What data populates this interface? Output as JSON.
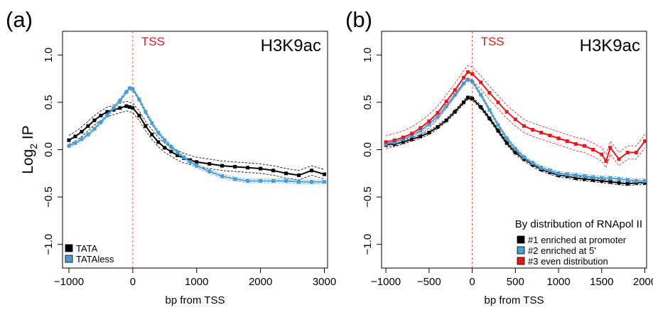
{
  "chart_data": [
    {
      "type": "line",
      "panel_label": "(a)",
      "corner_label": "H3K9ac",
      "vline_label": "TSS",
      "vline_x": 0,
      "xlabel": "bp from TSS",
      "ylabel_main": "Log",
      "ylabel_sub": "2",
      "ylabel_tail": " IP",
      "xlim": [
        -1100,
        3050
      ],
      "ylim": [
        -1.25,
        1.25
      ],
      "xticks": [
        -1000,
        0,
        1000,
        2000,
        3000
      ],
      "xtick_labels": [
        "−1000",
        "0",
        "1000",
        "2000",
        "3000"
      ],
      "yticks": [
        -1.0,
        -0.5,
        0.0,
        0.5,
        1.0
      ],
      "ytick_labels": [
        "−1.0",
        "−0.5",
        "0.0",
        "0.5",
        "1.0"
      ],
      "legend_title": "",
      "legend_position": "bottom-left",
      "series": [
        {
          "name": "TATA",
          "color": "#000000",
          "band": 0.05,
          "x": [
            -1000,
            -900,
            -800,
            -700,
            -600,
            -500,
            -400,
            -300,
            -200,
            -100,
            -50,
            0,
            100,
            200,
            300,
            400,
            500,
            600,
            700,
            800,
            900,
            1000,
            1200,
            1400,
            1600,
            1800,
            2000,
            2200,
            2400,
            2600,
            2800,
            3000
          ],
          "y": [
            0.1,
            0.14,
            0.19,
            0.25,
            0.31,
            0.36,
            0.4,
            0.42,
            0.44,
            0.46,
            0.45,
            0.44,
            0.36,
            0.25,
            0.16,
            0.08,
            0.02,
            -0.02,
            -0.06,
            -0.09,
            -0.11,
            -0.13,
            -0.15,
            -0.17,
            -0.18,
            -0.19,
            -0.2,
            -0.22,
            -0.25,
            -0.27,
            -0.22,
            -0.26
          ]
        },
        {
          "name": "TATAless",
          "color": "#4b9cd3",
          "band": 0.02,
          "x": [
            -1000,
            -900,
            -800,
            -700,
            -600,
            -500,
            -400,
            -300,
            -200,
            -100,
            -50,
            0,
            100,
            200,
            300,
            400,
            500,
            600,
            700,
            800,
            900,
            1000,
            1200,
            1400,
            1600,
            1800,
            2000,
            2200,
            2400,
            2600,
            2800,
            3000
          ],
          "y": [
            0.04,
            0.07,
            0.11,
            0.16,
            0.22,
            0.29,
            0.36,
            0.44,
            0.52,
            0.61,
            0.65,
            0.64,
            0.53,
            0.4,
            0.28,
            0.18,
            0.1,
            0.03,
            -0.03,
            -0.08,
            -0.13,
            -0.17,
            -0.23,
            -0.28,
            -0.31,
            -0.33,
            -0.33,
            -0.33,
            -0.33,
            -0.34,
            -0.34,
            -0.34
          ]
        }
      ]
    },
    {
      "type": "line",
      "panel_label": "(b)",
      "corner_label": "H3K9ac",
      "vline_label": "TSS",
      "vline_x": 0,
      "xlabel": "bp from TSS",
      "ylabel_main": "",
      "ylabel_sub": "",
      "ylabel_tail": "",
      "xlim": [
        -1050,
        2020
      ],
      "ylim": [
        -1.25,
        1.25
      ],
      "xticks": [
        -1000,
        -500,
        0,
        500,
        1000,
        1500,
        2000
      ],
      "xtick_labels": [
        "−1000",
        "−500",
        "0",
        "500",
        "1000",
        "1500",
        "2000"
      ],
      "yticks": [
        -1.0,
        -0.5,
        0.0,
        0.5,
        1.0
      ],
      "ytick_labels": [
        "−1.0",
        "−0.5",
        "0.0",
        "0.5",
        "1.0"
      ],
      "legend_title": "By distribution of RNApol II",
      "legend_position": "bottom-right",
      "series": [
        {
          "name": "#1 enriched at promoter",
          "color": "#000000",
          "band": 0.02,
          "x": [
            -1000,
            -900,
            -800,
            -700,
            -600,
            -500,
            -400,
            -300,
            -200,
            -100,
            -50,
            0,
            100,
            200,
            300,
            400,
            500,
            600,
            700,
            800,
            900,
            1000,
            1100,
            1200,
            1300,
            1400,
            1500,
            1600,
            1700,
            1800,
            1900,
            2000
          ],
          "y": [
            0.05,
            0.06,
            0.08,
            0.11,
            0.14,
            0.18,
            0.24,
            0.31,
            0.4,
            0.5,
            0.55,
            0.54,
            0.45,
            0.33,
            0.2,
            0.07,
            -0.03,
            -0.1,
            -0.16,
            -0.21,
            -0.24,
            -0.27,
            -0.28,
            -0.3,
            -0.31,
            -0.32,
            -0.33,
            -0.34,
            -0.35,
            -0.36,
            -0.35,
            -0.35
          ]
        },
        {
          "name": "#2 enriched at 5'",
          "color": "#4b9cd3",
          "band": 0.02,
          "x": [
            -1000,
            -900,
            -800,
            -700,
            -600,
            -500,
            -400,
            -300,
            -200,
            -100,
            -50,
            0,
            100,
            200,
            300,
            400,
            500,
            600,
            700,
            800,
            900,
            1000,
            1100,
            1200,
            1300,
            1400,
            1500,
            1600,
            1700,
            1800,
            1900,
            2000
          ],
          "y": [
            0.06,
            0.08,
            0.11,
            0.15,
            0.2,
            0.27,
            0.35,
            0.46,
            0.58,
            0.7,
            0.74,
            0.72,
            0.58,
            0.42,
            0.26,
            0.12,
            0.01,
            -0.08,
            -0.14,
            -0.19,
            -0.22,
            -0.25,
            -0.26,
            -0.27,
            -0.28,
            -0.29,
            -0.3,
            -0.3,
            -0.31,
            -0.32,
            -0.33,
            -0.33
          ]
        },
        {
          "name": "#3 even distribution",
          "color": "#e31a1c",
          "band": 0.07,
          "x": [
            -1000,
            -900,
            -800,
            -700,
            -600,
            -500,
            -400,
            -300,
            -200,
            -100,
            -50,
            0,
            100,
            200,
            300,
            400,
            500,
            600,
            700,
            800,
            900,
            1000,
            1100,
            1200,
            1300,
            1400,
            1500,
            1550,
            1600,
            1700,
            1800,
            1900,
            2000
          ],
          "y": [
            0.08,
            0.1,
            0.13,
            0.17,
            0.23,
            0.3,
            0.39,
            0.51,
            0.63,
            0.76,
            0.82,
            0.8,
            0.71,
            0.6,
            0.5,
            0.4,
            0.32,
            0.25,
            0.21,
            0.18,
            0.15,
            0.12,
            0.09,
            0.06,
            0.04,
            0.0,
            -0.05,
            -0.12,
            0.02,
            -0.1,
            -0.03,
            -0.03,
            0.09
          ]
        }
      ]
    }
  ]
}
